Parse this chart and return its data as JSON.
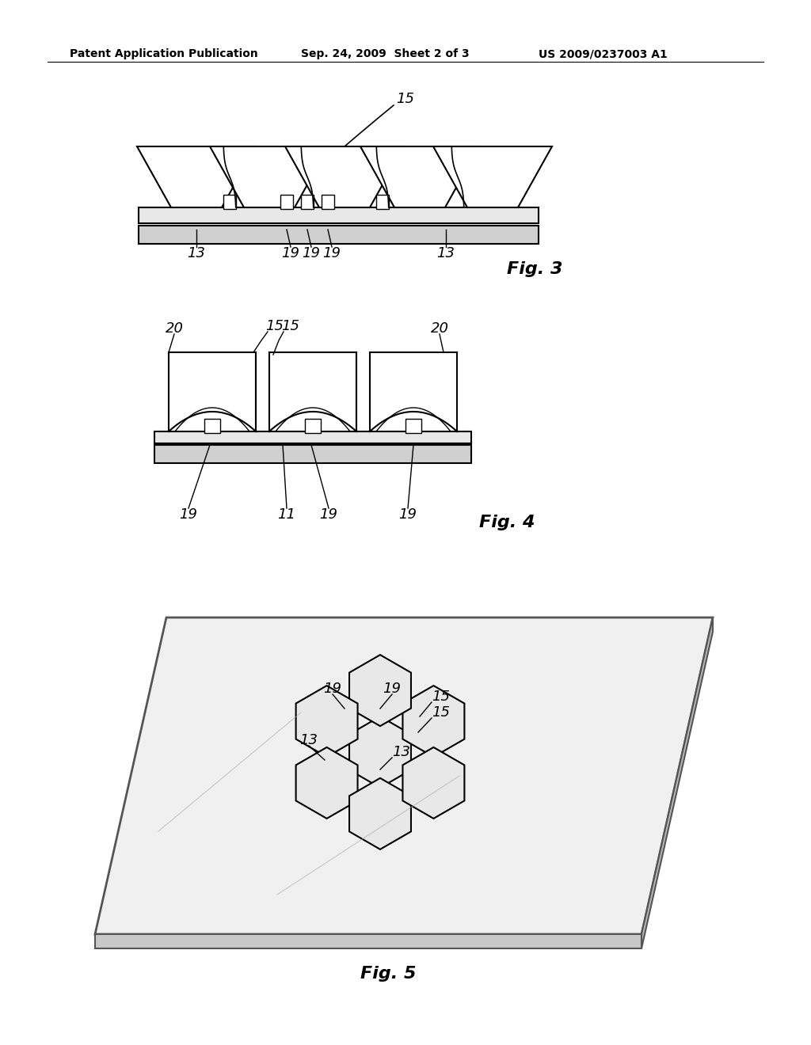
{
  "header_left": "Patent Application Publication",
  "header_mid": "Sep. 24, 2009  Sheet 2 of 3",
  "header_right": "US 2009/0237003 A1",
  "fig3_label": "Fig. 3",
  "fig4_label": "Fig. 4",
  "fig5_label": "Fig. 5",
  "background": "#ffffff",
  "line_color": "#000000",
  "text_color": "#000000"
}
